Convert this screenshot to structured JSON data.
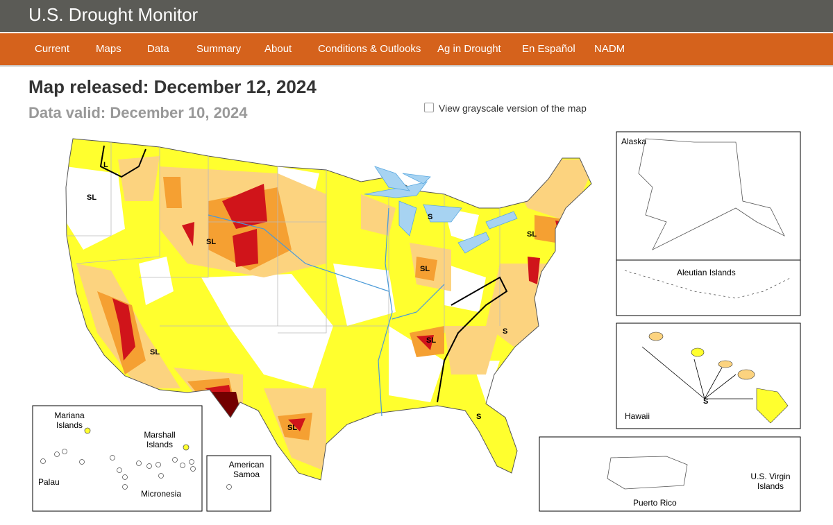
{
  "header": {
    "title": "U.S. Drought Monitor"
  },
  "nav": [
    "Current",
    "Maps",
    "Data",
    "Summary",
    "About",
    "Conditions & Outlooks",
    "Ag in Drought",
    "En Español",
    "NADM"
  ],
  "release": {
    "released": "Map released: December 12, 2024",
    "valid": "Data valid: December 10, 2024",
    "grayscale": "View grayscale version of the map"
  },
  "map": {
    "impact_labels": [
      "SL",
      "L",
      "SL",
      "S",
      "SL",
      "SL",
      "SL",
      "SL",
      "S",
      "S",
      "SL"
    ],
    "insets": {
      "alaska": "Alaska",
      "aleutian": "Aleutian Islands",
      "hawaii": "Hawaii",
      "hawaii_label": "S",
      "puerto_rico": "Puerto Rico",
      "virgin_islands": "U.S. Virgin Islands",
      "mariana": "Mariana Islands",
      "marshall": "Marshall Islands",
      "palau": "Palau",
      "micronesia": "Micronesia",
      "samoa": "American Samoa"
    }
  }
}
